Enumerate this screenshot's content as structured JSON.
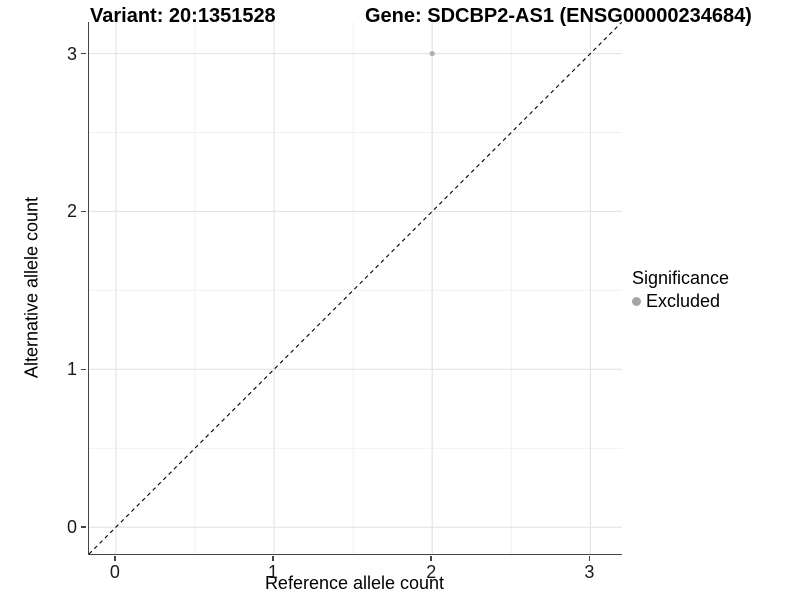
{
  "chart_data": {
    "type": "scatter",
    "title_parts": {
      "variant": "Variant: 20:1351528",
      "gene": "Gene: SDCBP2-AS1 (ENSG00000234684)"
    },
    "xlabel": "Reference allele count",
    "ylabel": "Alternative allele count",
    "xlim": [
      -0.17,
      3.2
    ],
    "ylim": [
      -0.17,
      3.2
    ],
    "xticks": [
      0,
      1,
      2,
      3
    ],
    "yticks": [
      0,
      1,
      2,
      3
    ],
    "minor_ticks_x": [
      0.5,
      1.5,
      2.5
    ],
    "minor_ticks_y": [
      0.5,
      1.5,
      2.5
    ],
    "grid": {
      "on": true,
      "major_color": "#e4e4e4",
      "minor_color": "#f1f1f1"
    },
    "axis_color": "#444444",
    "identity_line": {
      "style": "dashed",
      "color": "#000000",
      "from": [
        -0.17,
        -0.17
      ],
      "to": [
        3.2,
        3.2
      ]
    },
    "series": [
      {
        "name": "Excluded",
        "color": "#b0b0b0",
        "point_radius": 2.6,
        "points": [
          [
            2,
            3
          ]
        ]
      }
    ],
    "legend": {
      "title": "Significance",
      "position": "right",
      "items": [
        {
          "label": "Excluded",
          "color": "#a5a5a5"
        }
      ]
    }
  }
}
